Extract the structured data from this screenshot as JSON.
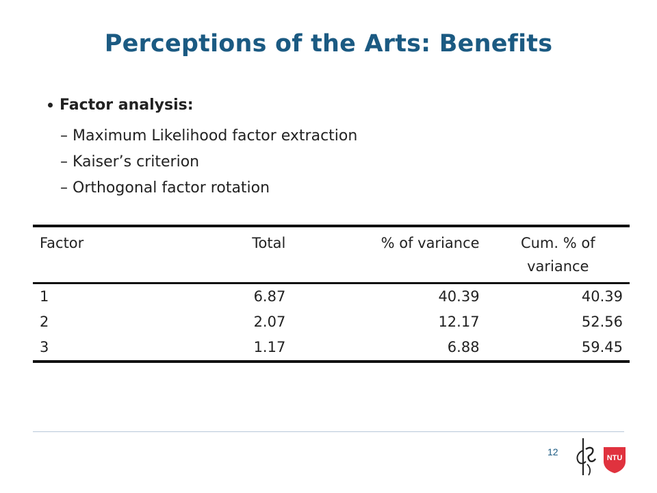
{
  "slide": {
    "title": "Perceptions of the Arts: Benefits",
    "bullet": "Factor analysis:",
    "sub_items": [
      "Maximum Likelihood factor extraction",
      "Kaiser’s criterion",
      "Orthogonal factor rotation"
    ],
    "page_number": "12"
  },
  "table": {
    "headers": {
      "factor": "Factor",
      "total": "Total",
      "pct": "% of variance",
      "cum_line1": "Cum. % of",
      "cum_line2": "variance"
    },
    "rows": [
      {
        "factor": "1",
        "total": "6.87",
        "pct": "40.39",
        "cum": "40.39"
      },
      {
        "factor": "2",
        "total": "2.07",
        "pct": "12.17",
        "cum": "52.56"
      },
      {
        "factor": "3",
        "total": "1.17",
        "pct": "6.88",
        "cum": "59.45"
      }
    ]
  },
  "logos": {
    "left": "ribbon-signature-logo",
    "right": "ntu-shield-logo",
    "right_text": "NTU",
    "brand_color": "#e0323e",
    "title_color": "#1b5a82"
  }
}
